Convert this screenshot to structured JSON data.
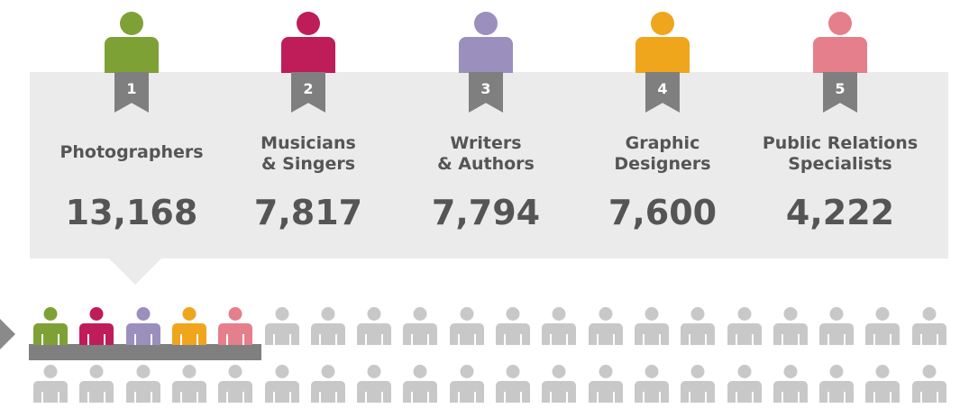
{
  "occupations": [
    {
      "rank": "1",
      "label_line1": "Photographers",
      "label_line2": "",
      "value": "13,168",
      "color": "#7ea136"
    },
    {
      "rank": "2",
      "label_line1": "Musicians",
      "label_line2": "& Singers",
      "value": "7,817",
      "color": "#be1d5a"
    },
    {
      "rank": "3",
      "label_line1": "Writers",
      "label_line2": "& Authors",
      "value": "7,794",
      "color": "#9b8fbd"
    },
    {
      "rank": "4",
      "label_line1": "Graphic",
      "label_line2": "Designers",
      "value": "7,600",
      "color": "#efa51c"
    },
    {
      "rank": "5",
      "label_line1": "Public Relations",
      "label_line2": "Specialists",
      "value": "4,222",
      "color": "#e57f8b"
    }
  ],
  "icon_grid": {
    "rows": 2,
    "per_row": 20,
    "highlighted_count": 5,
    "gray_color": "#c8c8c8",
    "highlight_colors": [
      "#7ea136",
      "#be1d5a",
      "#9b8fbd",
      "#efa51c",
      "#e57f8b"
    ]
  }
}
